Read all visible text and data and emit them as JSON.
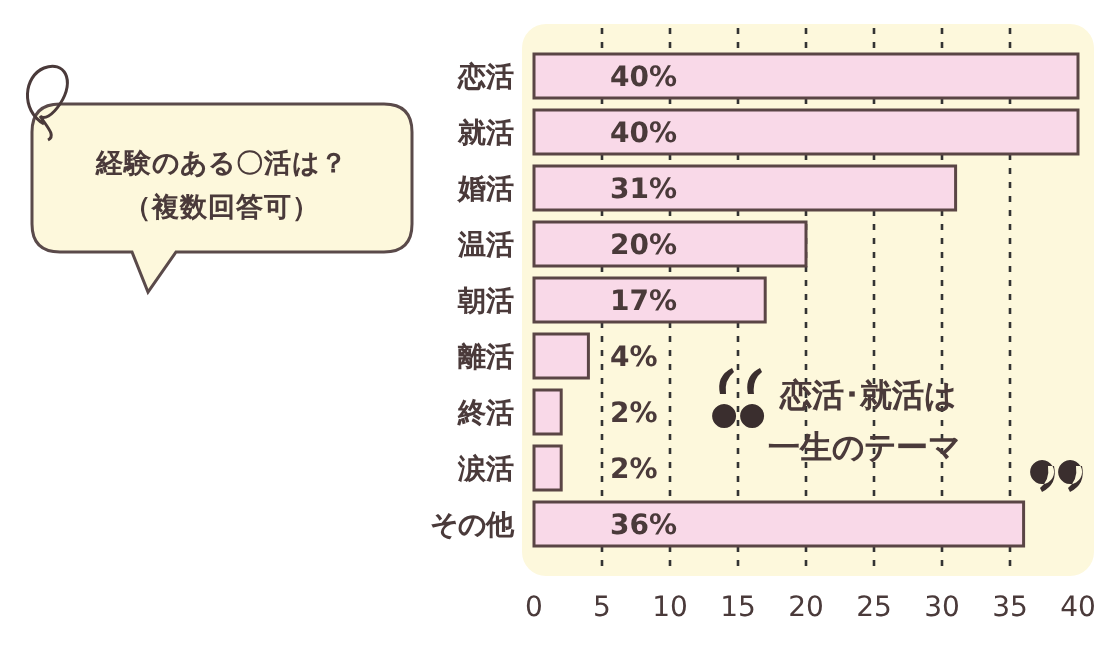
{
  "chart_data": {
    "type": "bar",
    "orientation": "horizontal",
    "title": "経験のある〇活は？",
    "subtitle": "（複数回答可）",
    "categories": [
      "恋活",
      "就活",
      "婚活",
      "温活",
      "朝活",
      "離活",
      "終活",
      "涙活",
      "その他"
    ],
    "values": [
      40,
      40,
      31,
      20,
      17,
      4,
      2,
      2,
      36
    ],
    "value_labels": [
      "40%",
      "40%",
      "31%",
      "20%",
      "17%",
      "4%",
      "2%",
      "2%",
      "36%"
    ],
    "color": "#f9d9e8",
    "xlim": [
      0,
      40
    ],
    "xticks": [
      0,
      5,
      10,
      15,
      20,
      25,
      30,
      35,
      40
    ],
    "grid": "x",
    "annotations": [
      "恋活･就活は",
      "一生のテーマ"
    ]
  }
}
